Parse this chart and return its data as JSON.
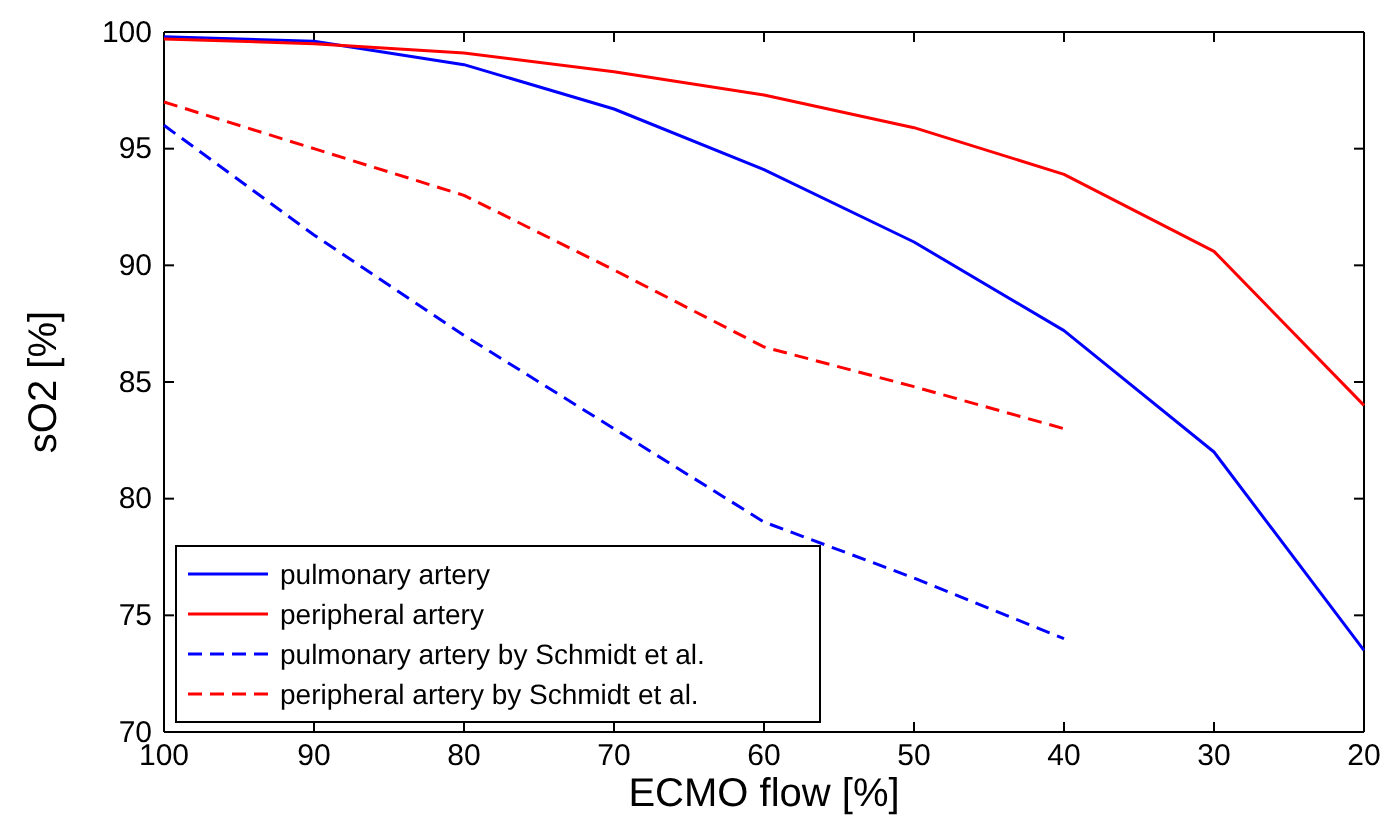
{
  "chart_data": {
    "type": "line",
    "xlabel": "ECMO flow [%]",
    "ylabel": "sO2 [%]",
    "x": [
      100,
      90,
      80,
      70,
      60,
      50,
      40,
      30,
      20
    ],
    "xlim": [
      100,
      20
    ],
    "xticks": [
      100,
      90,
      80,
      70,
      60,
      50,
      40,
      30,
      20
    ],
    "ylim": [
      70,
      100
    ],
    "yticks": [
      70,
      75,
      80,
      85,
      90,
      95,
      100
    ],
    "legend": "bottom left",
    "grid": false,
    "series": [
      {
        "name": "pulmonary artery",
        "color": "#0000ff",
        "line_style": "solid",
        "values": [
          99.8,
          99.6,
          98.6,
          96.7,
          94.1,
          91.0,
          87.2,
          82.0,
          73.5
        ]
      },
      {
        "name": "peripheral artery",
        "color": "#ff0000",
        "line_style": "solid",
        "values": [
          99.7,
          99.5,
          99.1,
          98.3,
          97.3,
          95.9,
          93.9,
          90.6,
          84.0
        ]
      },
      {
        "name": "pulmonary artery by Schmidt et al.",
        "color": "#0000ff",
        "line_style": "dashed",
        "x": [
          100,
          90,
          80,
          70,
          60,
          50,
          40
        ],
        "values": [
          96.0,
          91.3,
          87.0,
          83.0,
          79.0,
          76.6,
          74.0
        ]
      },
      {
        "name": "peripheral artery by Schmidt et al.",
        "color": "#ff0000",
        "line_style": "dashed",
        "x": [
          100,
          90,
          80,
          70,
          60,
          50,
          40
        ],
        "values": [
          97.0,
          95.0,
          93.0,
          89.8,
          86.5,
          84.8,
          83.0
        ]
      }
    ]
  }
}
